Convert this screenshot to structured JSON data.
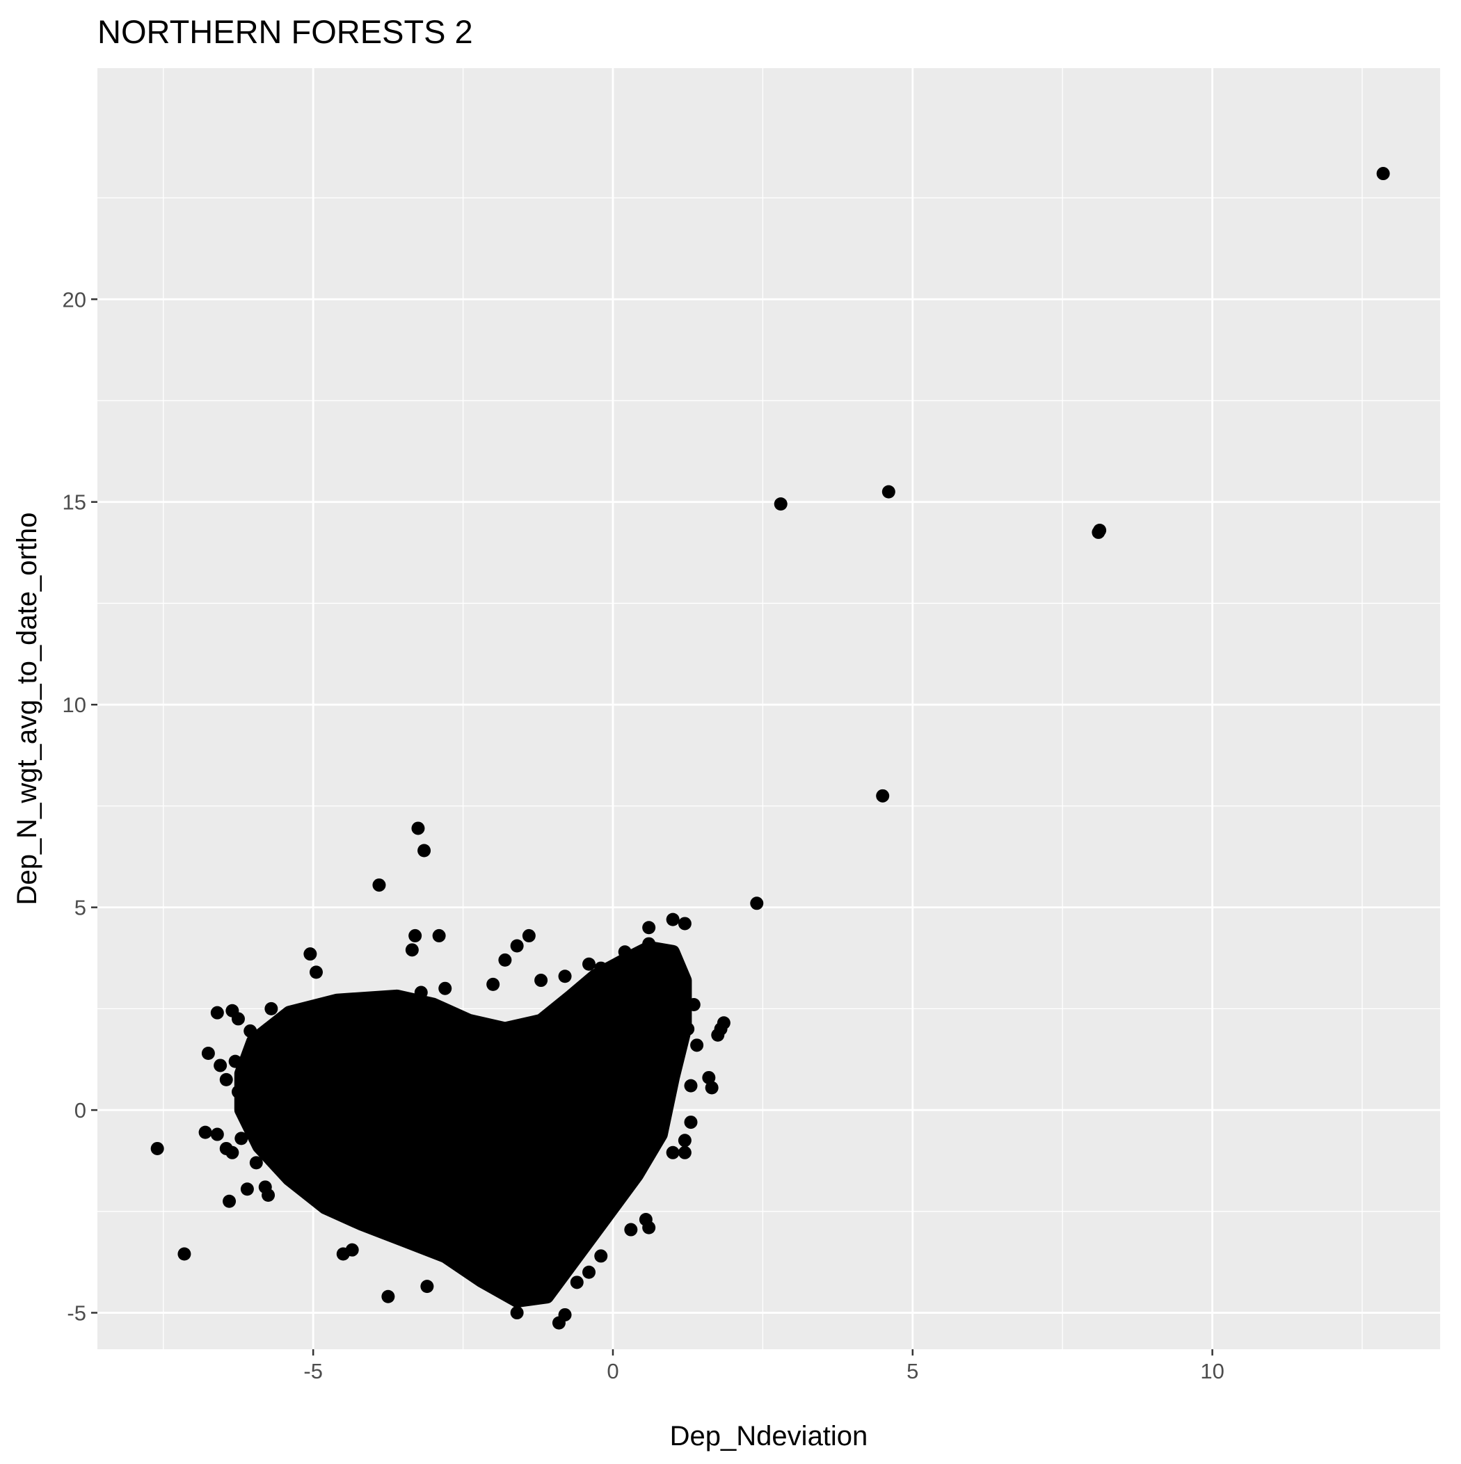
{
  "chart_data": {
    "type": "scatter",
    "title": "NORTHERN FORESTS 2",
    "xlabel": "Dep_Ndeviation",
    "ylabel": "Dep_N_wgt_avg_to_date_ortho",
    "xlim": [
      -8.6,
      13.8
    ],
    "ylim": [
      -5.9,
      25.7
    ],
    "x_ticks": [
      {
        "value": -5,
        "label": "-5"
      },
      {
        "value": 0,
        "label": "0"
      },
      {
        "value": 5,
        "label": "5"
      },
      {
        "value": 10,
        "label": "10"
      }
    ],
    "y_ticks": [
      {
        "value": -5,
        "label": "-5"
      },
      {
        "value": 0,
        "label": "0"
      },
      {
        "value": 5,
        "label": "5"
      },
      {
        "value": 10,
        "label": "10"
      },
      {
        "value": 15,
        "label": "15"
      },
      {
        "value": 20,
        "label": "20"
      }
    ],
    "grid": true,
    "colors": {
      "panel": "#ebebeb",
      "grid": "#ffffff",
      "point": "#000000"
    },
    "series": [
      {
        "points": [
          [
            12.85,
            23.1
          ],
          [
            4.6,
            15.25
          ],
          [
            2.8,
            14.95
          ],
          [
            8.1,
            14.25
          ],
          [
            8.12,
            14.3
          ],
          [
            4.5,
            7.75
          ],
          [
            2.4,
            5.1
          ],
          [
            -3.25,
            6.95
          ],
          [
            -3.15,
            6.4
          ],
          [
            -3.9,
            5.55
          ],
          [
            -7.6,
            -0.95
          ],
          [
            -7.15,
            -3.55
          ],
          [
            -3.75,
            -4.6
          ],
          [
            -3.1,
            -4.35
          ],
          [
            -0.9,
            -5.25
          ],
          [
            -0.8,
            -5.05
          ],
          [
            -1.6,
            -5.0
          ],
          [
            -5.05,
            3.85
          ],
          [
            -4.95,
            3.4
          ],
          [
            -3.3,
            4.3
          ],
          [
            -2.9,
            4.3
          ],
          [
            -1.4,
            4.3
          ],
          [
            -1.6,
            4.05
          ],
          [
            -3.35,
            3.95
          ],
          [
            1.0,
            4.7
          ],
          [
            1.2,
            4.6
          ],
          [
            0.6,
            4.5
          ],
          [
            -0.4,
            3.6
          ],
          [
            -6.6,
            2.4
          ],
          [
            -6.35,
            2.45
          ],
          [
            -6.25,
            2.25
          ],
          [
            -6.05,
            1.95
          ],
          [
            -5.7,
            2.5
          ],
          [
            -6.75,
            1.4
          ],
          [
            -6.55,
            1.1
          ],
          [
            -6.45,
            0.75
          ],
          [
            -6.3,
            1.2
          ],
          [
            -6.25,
            0.45
          ],
          [
            -6.6,
            -0.6
          ],
          [
            -6.8,
            -0.55
          ],
          [
            -6.45,
            -0.95
          ],
          [
            -6.35,
            -1.05
          ],
          [
            -6.2,
            -0.7
          ],
          [
            -6.4,
            -2.25
          ],
          [
            -6.1,
            -1.95
          ],
          [
            -5.95,
            -1.3
          ],
          [
            -5.8,
            -1.9
          ],
          [
            -5.75,
            -2.1
          ],
          [
            -4.5,
            -3.55
          ],
          [
            -4.35,
            -3.45
          ],
          [
            1.75,
            1.85
          ],
          [
            1.85,
            2.15
          ],
          [
            1.8,
            2.0
          ],
          [
            1.6,
            0.8
          ],
          [
            1.65,
            0.55
          ],
          [
            1.3,
            -0.3
          ],
          [
            1.2,
            -0.75
          ],
          [
            1.0,
            -1.05
          ],
          [
            1.2,
            -1.05
          ],
          [
            0.6,
            -2.9
          ],
          [
            0.55,
            -2.7
          ],
          [
            0.3,
            -2.95
          ],
          [
            -0.2,
            -3.6
          ],
          [
            -0.4,
            -4.0
          ],
          [
            -0.6,
            -4.25
          ],
          [
            -5.3,
            1.5
          ],
          [
            -5.0,
            2.2
          ],
          [
            -4.8,
            1.6
          ],
          [
            -5.5,
            0.9
          ],
          [
            -5.2,
            0.3
          ],
          [
            -5.6,
            -0.4
          ],
          [
            -5.1,
            -1.2
          ],
          [
            -4.7,
            -2.1
          ],
          [
            -4.4,
            -0.5
          ],
          [
            -4.2,
            1.0
          ],
          [
            -4.5,
            2.4
          ],
          [
            -3.8,
            2.6
          ],
          [
            -3.5,
            1.7
          ],
          [
            -3.2,
            2.9
          ],
          [
            -2.8,
            3.0
          ],
          [
            -2.4,
            2.2
          ],
          [
            -2.0,
            3.1
          ],
          [
            -1.8,
            3.7
          ],
          [
            -1.2,
            3.2
          ],
          [
            -0.8,
            3.3
          ],
          [
            -0.2,
            3.5
          ],
          [
            0.2,
            3.9
          ],
          [
            0.6,
            4.1
          ],
          [
            0.9,
            3.7
          ],
          [
            1.1,
            3.0
          ],
          [
            1.35,
            2.6
          ],
          [
            1.4,
            1.6
          ],
          [
            1.3,
            0.6
          ],
          [
            1.25,
            2.0
          ],
          [
            0.8,
            2.5
          ]
        ]
      }
    ]
  }
}
